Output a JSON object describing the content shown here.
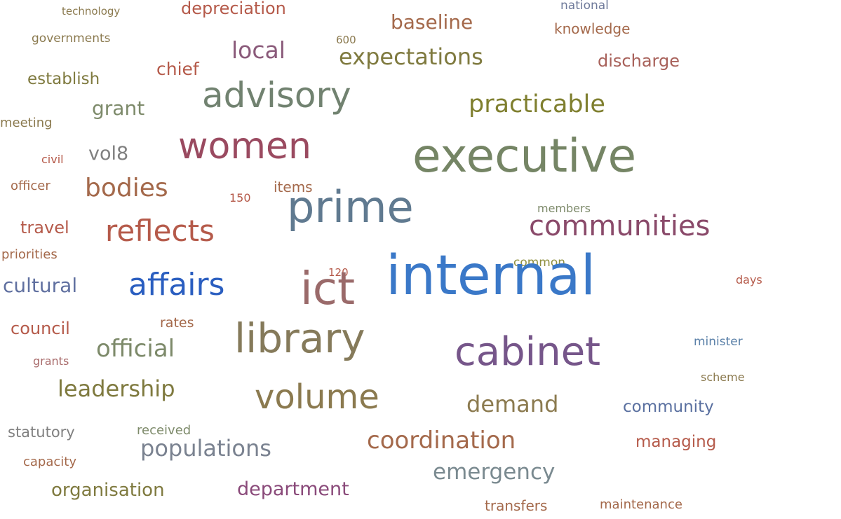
{
  "words": [
    {
      "text": "technology",
      "color": "#8b7a4f"
    },
    {
      "text": "depreciation",
      "color": "#b55a4a"
    },
    {
      "text": "national",
      "color": "#6f7a9a"
    },
    {
      "text": "governments",
      "color": "#8b7a4f"
    },
    {
      "text": "600",
      "color": "#8b7a4f"
    },
    {
      "text": "baseline",
      "color": "#a4694b"
    },
    {
      "text": "knowledge",
      "color": "#a4694b"
    },
    {
      "text": "local",
      "color": "#8a5a7a"
    },
    {
      "text": "expectations",
      "color": "#7f7a3f"
    },
    {
      "text": "discharge",
      "color": "#a8615a"
    },
    {
      "text": "establish",
      "color": "#7f7a3f"
    },
    {
      "text": "chief",
      "color": "#b55a4a"
    },
    {
      "text": "advisory",
      "color": "#718270"
    },
    {
      "text": "practicable",
      "color": "#7f7f2f"
    },
    {
      "text": "grant",
      "color": "#7d8a6a"
    },
    {
      "text": "meeting",
      "color": "#8b7a4f"
    },
    {
      "text": "women",
      "color": "#9a4a60"
    },
    {
      "text": "executive",
      "color": "#758565"
    },
    {
      "text": "civil",
      "color": "#b55a4a"
    },
    {
      "text": "vol8",
      "color": "#808080"
    },
    {
      "text": "officer",
      "color": "#a4694b"
    },
    {
      "text": "bodies",
      "color": "#a4694b"
    },
    {
      "text": "items",
      "color": "#a4694b"
    },
    {
      "text": "150",
      "color": "#b55a4a"
    },
    {
      "text": "prime",
      "color": "#607a90"
    },
    {
      "text": "members",
      "color": "#7d8a6a"
    },
    {
      "text": "travel",
      "color": "#b55a4a"
    },
    {
      "text": "reflects",
      "color": "#b55a4a"
    },
    {
      "text": "communities",
      "color": "#8a4a6a"
    },
    {
      "text": "priorities",
      "color": "#a4694b"
    },
    {
      "text": "120",
      "color": "#b55a4a"
    },
    {
      "text": "common",
      "color": "#8f8f3f"
    },
    {
      "text": "internal",
      "color": "#3a78c8"
    },
    {
      "text": "cultural",
      "color": "#6070a0"
    },
    {
      "text": "affairs",
      "color": "#2a5ec0"
    },
    {
      "text": "ict",
      "color": "#9a6a6a"
    },
    {
      "text": "days",
      "color": "#b55a4a"
    },
    {
      "text": "council",
      "color": "#b55a4a"
    },
    {
      "text": "rates",
      "color": "#a4694b"
    },
    {
      "text": "library",
      "color": "#857a5a"
    },
    {
      "text": "minister",
      "color": "#5a80a8"
    },
    {
      "text": "official",
      "color": "#7d8a6a"
    },
    {
      "text": "cabinet",
      "color": "#76568a"
    },
    {
      "text": "grants",
      "color": "#a86a6a"
    },
    {
      "text": "scheme",
      "color": "#8b7a4f"
    },
    {
      "text": "leadership",
      "color": "#7f7a3f"
    },
    {
      "text": "volume",
      "color": "#8b7a4f"
    },
    {
      "text": "demand",
      "color": "#8b7a4f"
    },
    {
      "text": "community",
      "color": "#5a70a0"
    },
    {
      "text": "statutory",
      "color": "#808080"
    },
    {
      "text": "received",
      "color": "#7d8a6a"
    },
    {
      "text": "coordination",
      "color": "#a4694b"
    },
    {
      "text": "managing",
      "color": "#b55a4a"
    },
    {
      "text": "populations",
      "color": "#7a8290"
    },
    {
      "text": "capacity",
      "color": "#a4694b"
    },
    {
      "text": "emergency",
      "color": "#7a8a90"
    },
    {
      "text": "organisation",
      "color": "#7f7a3f"
    },
    {
      "text": "department",
      "color": "#8a4a7a"
    },
    {
      "text": "transfers",
      "color": "#a4694b"
    },
    {
      "text": "maintenance",
      "color": "#a4694b"
    }
  ]
}
